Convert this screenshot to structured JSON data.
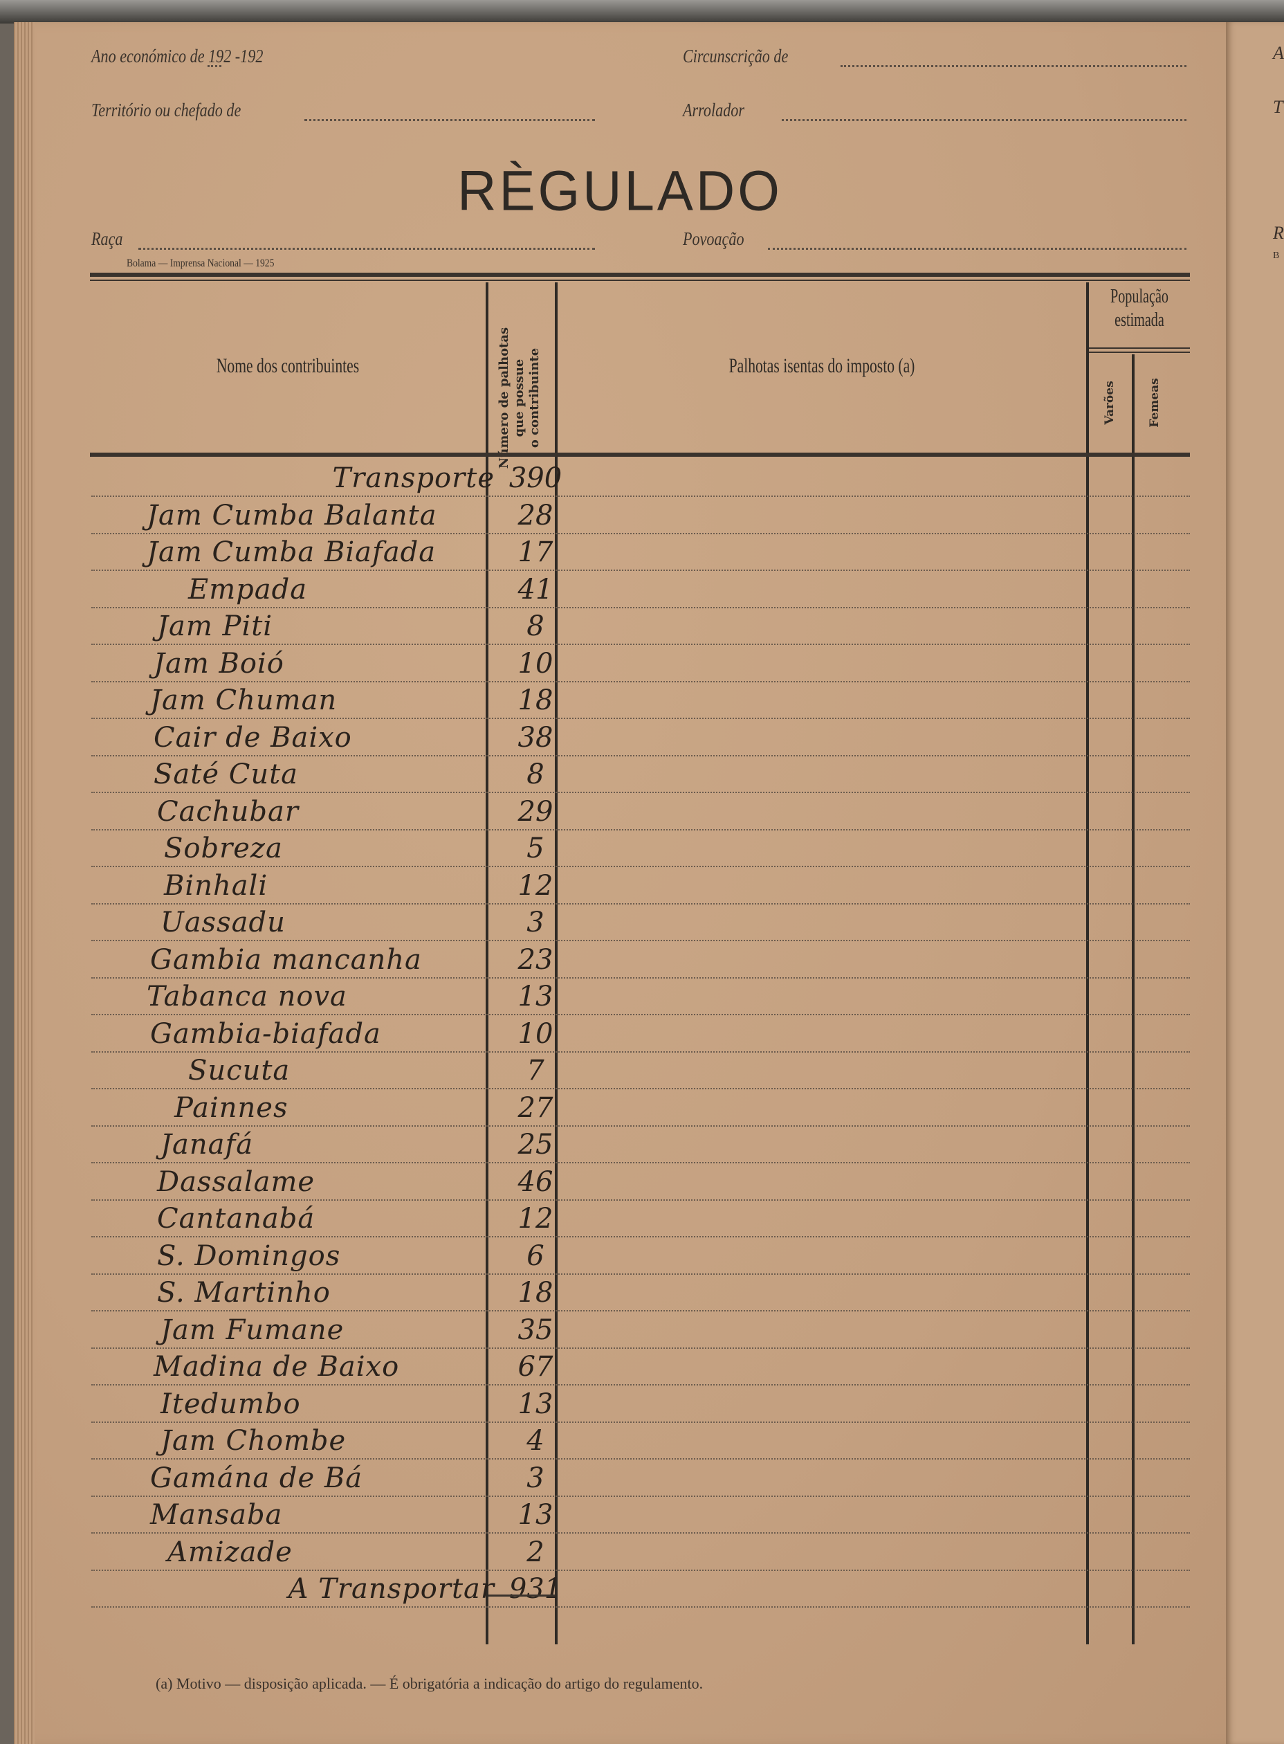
{
  "header": {
    "ano_label": "Ano económico de 192   -192",
    "circunscricao_label": "Circunscrição de",
    "territorio_label": "Território ou chefado de",
    "arrolador_label": "Arrolador",
    "title": "RÈGULADO",
    "raca_label": "Raça",
    "povoacao_label": "Povoação",
    "printer": "Bolama — Imprensa Nacional — 1925"
  },
  "table": {
    "columns": {
      "nome": "Nome dos contribuintes",
      "numero_l1": "Número de palhotas",
      "numero_l2": "que possue",
      "numero_l3": "o contribuinte",
      "isentas": "Palhotas isentas do imposto (a)",
      "populacao_l1": "População",
      "populacao_l2": "estimada",
      "varoes": "Varões",
      "femeas": "Femeas"
    },
    "rows": [
      {
        "name": "Transporte",
        "value": "390",
        "align": "right"
      },
      {
        "name": "Jam Cumba Balanta",
        "value": "28"
      },
      {
        "name": "Jam Cumba Biafada",
        "value": "17"
      },
      {
        "name": "Empada",
        "value": "41"
      },
      {
        "name": "Jam Piti",
        "value": "8"
      },
      {
        "name": "Jam Boió",
        "value": "10"
      },
      {
        "name": "Jam Chuman",
        "value": "18"
      },
      {
        "name": "Cair de Baixo",
        "value": "38"
      },
      {
        "name": "Saté Cuta",
        "value": "8"
      },
      {
        "name": "Cachubar",
        "value": "29"
      },
      {
        "name": "Sobreza",
        "value": "5"
      },
      {
        "name": "Binhali",
        "value": "12"
      },
      {
        "name": "Uassadu",
        "value": "3"
      },
      {
        "name": "Gambia mancanha",
        "value": "23"
      },
      {
        "name": "Tabanca nova",
        "value": "13"
      },
      {
        "name": "Gambia-biafada",
        "value": "10"
      },
      {
        "name": "Sucuta",
        "value": "7"
      },
      {
        "name": "Painnes",
        "value": "27"
      },
      {
        "name": "Janafá",
        "value": "25"
      },
      {
        "name": "Dassalame",
        "value": "46"
      },
      {
        "name": "Cantanabá",
        "value": "12"
      },
      {
        "name": "S. Domingos",
        "value": "6"
      },
      {
        "name": "S. Martinho",
        "value": "18"
      },
      {
        "name": "Jam Fumane",
        "value": "35"
      },
      {
        "name": "Madina de Baixo",
        "value": "67"
      },
      {
        "name": "Itedumbo",
        "value": "13"
      },
      {
        "name": "Jam Chombe",
        "value": "4"
      },
      {
        "name": "Gamána de Bá",
        "value": "3"
      },
      {
        "name": "Mansaba",
        "value": "13"
      },
      {
        "name": "Amizade",
        "value": "2"
      },
      {
        "name": "A Transportar",
        "value": "931",
        "align": "right"
      }
    ]
  },
  "footnote": "(a) Motivo — disposição aplicada. — É obrigatória a indicação do artigo do regulamento.",
  "next_page_fragments": [
    "A",
    "T",
    "R",
    "B"
  ]
}
